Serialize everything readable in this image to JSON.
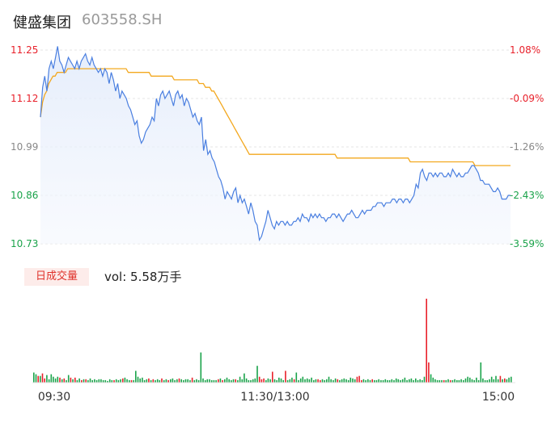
{
  "header": {
    "name": "健盛集团",
    "code": "603558.SH"
  },
  "colors": {
    "up": "#e8212b",
    "down": "#1aa34a",
    "price_line": "#4a7fe0",
    "avg_line": "#f3a81f",
    "neutral": "#888888",
    "gridline": "#e6e6e6"
  },
  "volume_panel": {
    "tab_label": "日成交量",
    "vol_text": "vol: 5.58万手"
  },
  "chart_data": [
    {
      "type": "line",
      "title": "",
      "x_ticks": [
        "09:30",
        "11:30/13:00",
        "15:00"
      ],
      "y_ticks": [
        "11.25",
        "11.12",
        "10.99",
        "10.86",
        "10.73"
      ],
      "y_right_ticks": [
        "1.08%",
        "-0.09%",
        "-1.26%",
        "-2.43%",
        "-3.59%"
      ],
      "ylim": [
        10.73,
        11.25
      ],
      "series": [
        {
          "name": "",
          "role": "price",
          "values": [
            11.07,
            11.15,
            11.18,
            11.14,
            11.2,
            11.22,
            11.2,
            11.23,
            11.26,
            11.22,
            11.21,
            11.19,
            11.21,
            11.23,
            11.22,
            11.21,
            11.2,
            11.22,
            11.2,
            11.22,
            11.23,
            11.24,
            11.22,
            11.21,
            11.23,
            11.21,
            11.2,
            11.19,
            11.2,
            11.18,
            11.2,
            11.19,
            11.16,
            11.19,
            11.17,
            11.14,
            11.16,
            11.12,
            11.14,
            11.13,
            11.12,
            11.1,
            11.09,
            11.07,
            11.05,
            11.06,
            11.02,
            11.0,
            11.01,
            11.03,
            11.04,
            11.05,
            11.07,
            11.06,
            11.12,
            11.1,
            11.13,
            11.14,
            11.12,
            11.13,
            11.14,
            11.12,
            11.1,
            11.13,
            11.14,
            11.12,
            11.13,
            11.1,
            11.12,
            11.11,
            11.09,
            11.07,
            11.08,
            11.06,
            11.05,
            11.07,
            10.98,
            11.01,
            10.97,
            10.98,
            10.96,
            10.95,
            10.93,
            10.91,
            10.9,
            10.88,
            10.85,
            10.87,
            10.86,
            10.85,
            10.87,
            10.88,
            10.84,
            10.86,
            10.84,
            10.85,
            10.83,
            10.81,
            10.84,
            10.82,
            10.79,
            10.78,
            10.74,
            10.75,
            10.77,
            10.79,
            10.82,
            10.8,
            10.78,
            10.77,
            10.79,
            10.78,
            10.79,
            10.79,
            10.78,
            10.79,
            10.78,
            10.78,
            10.79,
            10.79,
            10.8,
            10.79,
            10.81,
            10.8,
            10.8,
            10.79,
            10.81,
            10.8,
            10.81,
            10.8,
            10.81,
            10.8,
            10.8,
            10.79,
            10.8,
            10.8,
            10.81,
            10.81,
            10.8,
            10.81,
            10.8,
            10.79,
            10.8,
            10.81,
            10.81,
            10.82,
            10.81,
            10.8,
            10.8,
            10.81,
            10.82,
            10.81,
            10.82,
            10.82,
            10.82,
            10.83,
            10.83,
            10.84,
            10.84,
            10.84,
            10.83,
            10.84,
            10.84,
            10.84,
            10.85,
            10.85,
            10.84,
            10.85,
            10.85,
            10.84,
            10.85,
            10.85,
            10.84,
            10.85,
            10.86,
            10.89,
            10.88,
            10.92,
            10.93,
            10.91,
            10.9,
            10.92,
            10.92,
            10.91,
            10.92,
            10.91,
            10.92,
            10.92,
            10.91,
            10.91,
            10.92,
            10.91,
            10.93,
            10.92,
            10.91,
            10.92,
            10.91,
            10.91,
            10.92,
            10.92,
            10.93,
            10.94,
            10.94,
            10.93,
            10.92,
            10.9,
            10.9,
            10.89,
            10.89,
            10.89,
            10.88,
            10.87,
            10.87,
            10.88,
            10.87,
            10.85,
            10.85,
            10.85,
            10.86,
            10.86
          ]
        },
        {
          "name": "",
          "role": "average",
          "values": [
            11.07,
            11.11,
            11.13,
            11.14,
            11.16,
            11.17,
            11.18,
            11.18,
            11.19,
            11.19,
            11.19,
            11.19,
            11.19,
            11.2,
            11.2,
            11.2,
            11.2,
            11.2,
            11.2,
            11.2,
            11.2,
            11.2,
            11.2,
            11.2,
            11.2,
            11.2,
            11.2,
            11.2,
            11.2,
            11.2,
            11.2,
            11.2,
            11.2,
            11.2,
            11.2,
            11.2,
            11.2,
            11.2,
            11.2,
            11.2,
            11.2,
            11.2,
            11.19,
            11.19,
            11.19,
            11.19,
            11.19,
            11.19,
            11.19,
            11.19,
            11.19,
            11.19,
            11.19,
            11.18,
            11.18,
            11.18,
            11.18,
            11.18,
            11.18,
            11.18,
            11.18,
            11.18,
            11.18,
            11.18,
            11.17,
            11.17,
            11.17,
            11.17,
            11.17,
            11.17,
            11.17,
            11.17,
            11.17,
            11.17,
            11.17,
            11.17,
            11.16,
            11.16,
            11.16,
            11.15,
            11.15,
            11.15,
            11.14,
            11.14,
            11.13,
            11.12,
            11.11,
            11.1,
            11.09,
            11.08,
            11.07,
            11.06,
            11.05,
            11.04,
            11.03,
            11.02,
            11.01,
            11.0,
            10.99,
            10.98,
            10.97,
            10.97,
            10.97,
            10.97,
            10.97,
            10.97,
            10.97,
            10.97,
            10.97,
            10.97,
            10.97,
            10.97,
            10.97,
            10.97,
            10.97,
            10.97,
            10.97,
            10.97,
            10.97,
            10.97,
            10.97,
            10.97,
            10.97,
            10.97,
            10.97,
            10.97,
            10.97,
            10.97,
            10.97,
            10.97,
            10.97,
            10.97,
            10.97,
            10.97,
            10.97,
            10.97,
            10.97,
            10.97,
            10.97,
            10.97,
            10.97,
            10.97,
            10.96,
            10.96,
            10.96,
            10.96,
            10.96,
            10.96,
            10.96,
            10.96,
            10.96,
            10.96,
            10.96,
            10.96,
            10.96,
            10.96,
            10.96,
            10.96,
            10.96,
            10.96,
            10.96,
            10.96,
            10.96,
            10.96,
            10.96,
            10.96,
            10.96,
            10.96,
            10.96,
            10.96,
            10.96,
            10.96,
            10.96,
            10.96,
            10.96,
            10.96,
            10.96,
            10.95,
            10.95,
            10.95,
            10.95,
            10.95,
            10.95,
            10.95,
            10.95,
            10.95,
            10.95,
            10.95,
            10.95,
            10.95,
            10.95,
            10.95,
            10.95,
            10.95,
            10.95,
            10.95,
            10.95,
            10.95,
            10.95,
            10.95,
            10.95,
            10.95,
            10.95,
            10.95,
            10.95,
            10.95,
            10.95,
            10.95,
            10.94,
            10.94,
            10.94,
            10.94,
            10.94,
            10.94,
            10.94,
            10.94,
            10.94,
            10.94,
            10.94,
            10.94,
            10.94,
            10.94,
            10.94,
            10.94,
            10.94,
            10.94
          ]
        }
      ]
    },
    {
      "type": "bar",
      "title": "",
      "ymax": 100,
      "values": [
        12,
        10,
        8,
        8,
        11,
        5,
        9,
        4,
        10,
        7,
        5,
        7,
        6,
        4,
        5,
        3,
        9,
        6,
        4,
        6,
        3,
        5,
        3,
        4,
        4,
        3,
        5,
        3,
        4,
        3,
        4,
        4,
        3,
        3,
        2,
        4,
        3,
        3,
        4,
        3,
        4,
        5,
        6,
        4,
        3,
        3,
        3,
        14,
        7,
        5,
        6,
        3,
        4,
        5,
        3,
        4,
        3,
        4,
        3,
        5,
        3,
        4,
        3,
        4,
        5,
        3,
        4,
        5,
        4,
        3,
        4,
        4,
        3,
        6,
        3,
        4,
        3,
        36,
        5,
        3,
        4,
        4,
        3,
        3,
        3,
        4,
        5,
        3,
        4,
        6,
        4,
        3,
        4,
        4,
        3,
        7,
        4,
        11,
        5,
        3,
        3,
        4,
        5,
        20,
        7,
        4,
        5,
        3,
        5,
        4,
        13,
        4,
        3,
        6,
        5,
        3,
        14,
        3,
        4,
        6,
        4,
        12,
        3,
        5,
        7,
        4,
        5,
        4,
        6,
        3,
        4,
        4,
        3,
        4,
        3,
        4,
        7,
        4,
        3,
        5,
        4,
        3,
        4,
        5,
        4,
        3,
        6,
        5,
        4,
        7,
        8,
        3,
        4,
        3,
        4,
        3,
        4,
        3,
        3,
        4,
        3,
        3,
        4,
        3,
        3,
        4,
        3,
        5,
        4,
        3,
        4,
        6,
        3,
        4,
        5,
        3,
        5,
        3,
        4,
        3,
        7,
        100,
        24,
        10,
        6,
        4,
        3,
        3,
        3,
        3,
        3,
        4,
        3,
        3,
        4,
        3,
        3,
        4,
        3,
        5,
        7,
        6,
        4,
        3,
        6,
        3,
        24,
        5,
        3,
        3,
        4,
        7,
        4,
        8,
        4,
        8,
        4,
        5,
        4,
        6,
        7
      ],
      "directions": "dduduuddddddududdududdududdddddddddddudddudddudddddddududddudduddddudddddudddddddddddududddddudddddddddduuudddudddddudddudddddddddduudddddddudddddddduuuddddudddddddddddddddddddddddduuddddddudduddddddddddddddddddddddudu"
    }
  ]
}
